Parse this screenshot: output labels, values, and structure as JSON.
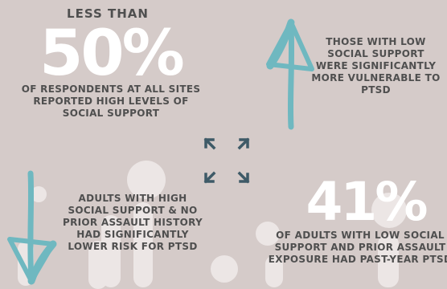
{
  "stats": [
    {
      "pre": "LESS THAN",
      "big": "50%",
      "text": "OF RESPONDENTS AT ALL SITES REPORTED HIGH LEVELS OF SOCIAL SUPPORT"
    },
    {
      "text": "THOSE WITH LOW SOCIAL SUPPORT WERE SIGNIFICANTLY MORE VULNERABLE TO PTSD"
    },
    {
      "text": "ADULTS WITH HIGH SOCIAL SUPPORT & NO PRIOR ASSAULT HISTORY HAD SIGNIFICANTLY LOWER RISK FOR PTSD"
    },
    {
      "big": "41%",
      "text": "OF ADULTS WITH LOW SOCIAL SUPPORT AND PRIOR ASSAULT EXPOSURE HAD PAST-YEAR PTSD"
    }
  ],
  "colors": {
    "background": "#d5cbc9",
    "text": "#4f4f4f",
    "highlight": "#ffffff",
    "arrow": "#6fb8c0",
    "icon": "#3e5a67"
  },
  "icons": {
    "up_arrow": "arrow-up-icon",
    "down_arrow": "arrow-down-icon",
    "center": "expand-arrows-icon"
  }
}
